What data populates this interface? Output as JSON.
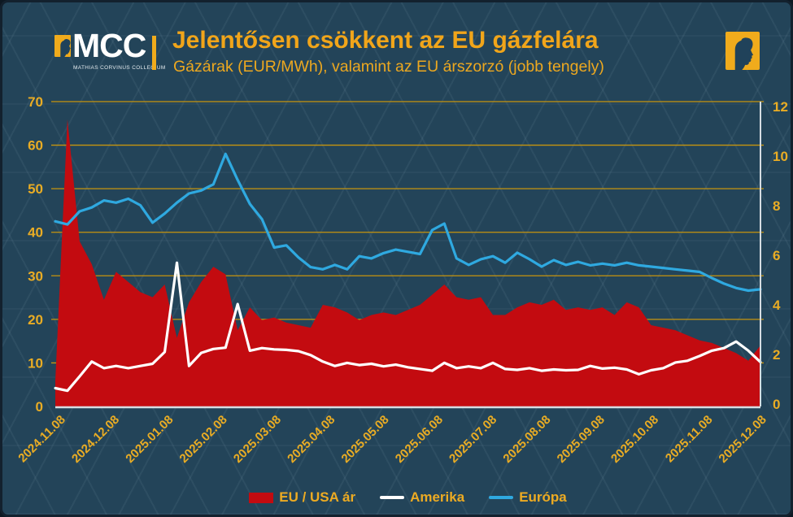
{
  "header": {
    "logo": {
      "text": "MCC",
      "subtext": "MATHIAS CORVINUS COLLEGIUM"
    }
  },
  "colors": {
    "background": "#234459",
    "gold_title": "#F1A51A",
    "gold_labels": "#E9AC24",
    "gridline": "#C7950E",
    "red_area": "#C30B10",
    "blue_line": "#2FA9E0",
    "white_line": "#FFFFFF",
    "axis_line": "#D6DDE2"
  },
  "chart_data": {
    "type": "area",
    "title": "Jelentősen csökkent az EU gázfelára",
    "subtitle": "Gázárak (EUR/MWh), valamint az EU árszorzó (jobb tengely)",
    "grid": "horizontal-on",
    "legend_position": "bottom-center",
    "left_axis": {
      "min": 0,
      "max": 70,
      "ticks": [
        0,
        10,
        20,
        30,
        40,
        50,
        60,
        70
      ]
    },
    "right_axis": {
      "min": 0,
      "max": 12,
      "ticks": [
        0,
        2,
        4,
        6,
        8,
        10,
        12
      ]
    },
    "x_labels": [
      "2024.11.08",
      "2024.12.08",
      "2025.01.08",
      "2025.02.08",
      "2025.03.08",
      "2025.04.08",
      "2025.05.08",
      "2025.06.08",
      "2025.07.08",
      "2025.08.08",
      "2025.09.08",
      "2025.10.08",
      "2025.11.08",
      "2025.12.08"
    ],
    "sampling": "weekly",
    "series": [
      {
        "name": "EU / USA ár",
        "type": "area",
        "axis": "right",
        "color": "#C30B10",
        "values": [
          1.0,
          11.3,
          6.5,
          5.6,
          4.2,
          5.3,
          4.9,
          4.5,
          4.3,
          4.8,
          2.7,
          4.1,
          4.9,
          5.5,
          5.2,
          3.0,
          3.9,
          3.4,
          3.5,
          3.3,
          3.2,
          3.1,
          4.0,
          3.9,
          3.7,
          3.4,
          3.6,
          3.7,
          3.6,
          3.8,
          4.0,
          4.4,
          4.8,
          4.3,
          4.2,
          4.3,
          3.6,
          3.6,
          3.9,
          4.1,
          4.0,
          4.2,
          3.8,
          3.9,
          3.8,
          3.9,
          3.6,
          4.1,
          3.9,
          3.2,
          3.1,
          3.0,
          2.8,
          2.6,
          2.5,
          2.3,
          2.1,
          1.8,
          2.4
        ]
      },
      {
        "name": "Amerika",
        "type": "line",
        "axis": "left",
        "color": "#FFFFFF",
        "values": [
          4.2,
          3.6,
          6.9,
          10.3,
          8.8,
          9.3,
          8.8,
          9.3,
          9.8,
          12.5,
          33.0,
          9.3,
          12.3,
          13.2,
          13.5,
          23.5,
          12.8,
          13.4,
          13.1,
          13.0,
          12.7,
          11.8,
          10.3,
          9.3,
          10.0,
          9.5,
          9.8,
          9.2,
          9.6,
          9.0,
          8.6,
          8.2,
          10.0,
          8.8,
          9.2,
          8.8,
          10.0,
          8.6,
          8.4,
          8.8,
          8.2,
          8.5,
          8.3,
          8.4,
          9.3,
          8.7,
          8.9,
          8.5,
          7.4,
          8.3,
          8.8,
          10.1,
          10.5,
          11.6,
          12.8,
          13.4,
          14.9,
          12.8,
          10.2
        ]
      },
      {
        "name": "Európa",
        "type": "line",
        "axis": "left",
        "color": "#2FA9E0",
        "values": [
          42.5,
          41.8,
          44.8,
          45.7,
          47.3,
          46.8,
          47.7,
          46.2,
          42.2,
          44.3,
          46.8,
          48.9,
          49.6,
          51.0,
          58.0,
          52.0,
          46.5,
          43.0,
          36.5,
          37.0,
          34.2,
          32.0,
          31.5,
          32.5,
          31.5,
          34.5,
          34.0,
          35.2,
          36.0,
          35.5,
          35.0,
          40.5,
          42.0,
          34.0,
          32.5,
          33.8,
          34.5,
          33.0,
          35.3,
          33.8,
          32.1,
          33.6,
          32.5,
          33.2,
          32.4,
          32.8,
          32.4,
          33.0,
          32.4,
          32.1,
          31.8,
          31.5,
          31.2,
          30.9,
          29.5,
          28.2,
          27.2,
          26.6,
          26.9
        ]
      }
    ]
  }
}
